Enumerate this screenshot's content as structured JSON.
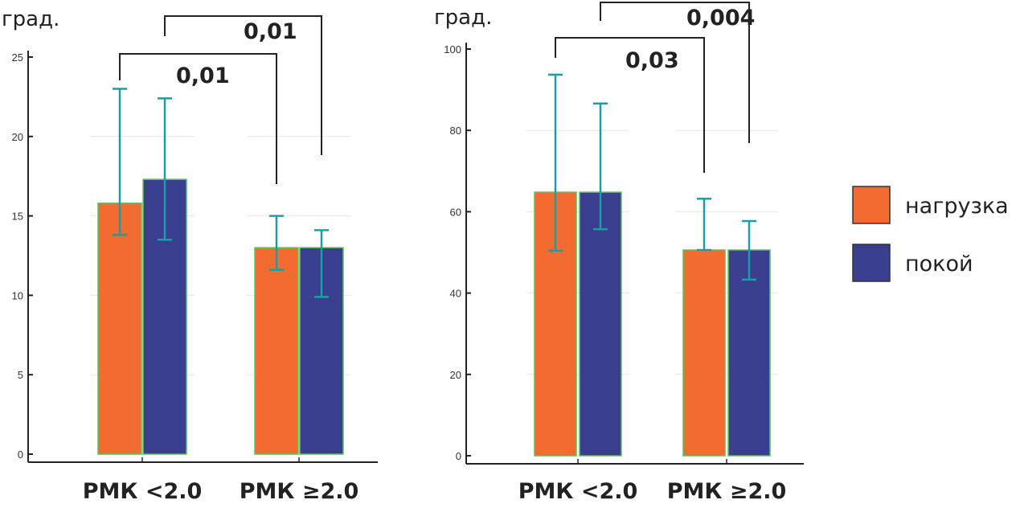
{
  "chart_data": [
    {
      "type": "bar",
      "ylabel": "град.",
      "ylim": [
        0,
        25
      ],
      "yticks": [
        0,
        5,
        10,
        15,
        20,
        25
      ],
      "categories": [
        "РМК <2.0",
        "РМК ≥2.0"
      ],
      "series": [
        {
          "name": "нагрузка",
          "color": "#f26b30",
          "values": [
            15.8,
            13.0
          ],
          "err_high": [
            23.0,
            15.0
          ],
          "err_low": [
            13.8,
            11.6
          ]
        },
        {
          "name": "покой",
          "color": "#393e8f",
          "values": [
            17.3,
            13.0
          ],
          "err_high": [
            22.4,
            14.1
          ],
          "err_low": [
            13.5,
            9.9
          ]
        }
      ],
      "annotations": [
        {
          "text": "0,01",
          "from": "РМК <2.0 нагрузка",
          "to": "РМК ≥2.0 нагрузка"
        },
        {
          "text": "0,01",
          "from": "РМК <2.0 покой",
          "to": "РМК ≥2.0 покой"
        }
      ]
    },
    {
      "type": "bar",
      "ylabel": "град.",
      "ylim": [
        0,
        100
      ],
      "yticks": [
        0,
        20,
        40,
        60,
        80,
        100
      ],
      "categories": [
        "РМК <2.0",
        "РМК ≥2.0"
      ],
      "series": [
        {
          "name": "нагрузка",
          "color": "#f26b30",
          "values": [
            64.8,
            50.6
          ],
          "err_high": [
            93.7,
            63.2
          ],
          "err_low": [
            50.4,
            50.6
          ]
        },
        {
          "name": "покой",
          "color": "#393e8f",
          "values": [
            64.8,
            50.6
          ],
          "err_high": [
            86.6,
            57.7
          ],
          "err_low": [
            55.7,
            43.3
          ]
        }
      ],
      "annotations": [
        {
          "text": "0,03",
          "from": "РМК <2.0 нагрузка",
          "to": "РМК ≥2.0 нагрузка"
        },
        {
          "text": "0,004",
          "from": "РМК <2.0 покой",
          "to": "РМК ≥2.0 покой"
        }
      ]
    }
  ],
  "legend": {
    "placement": "right",
    "items": [
      {
        "label": "нагрузка",
        "color": "#f26b30"
      },
      {
        "label": "покой",
        "color": "#393e8f"
      }
    ]
  },
  "style": {
    "error_color": "#1a9ea6",
    "bar_edge": "#5cc25c",
    "axis_color": "#222222",
    "grid_color": "#e6e6e6"
  }
}
